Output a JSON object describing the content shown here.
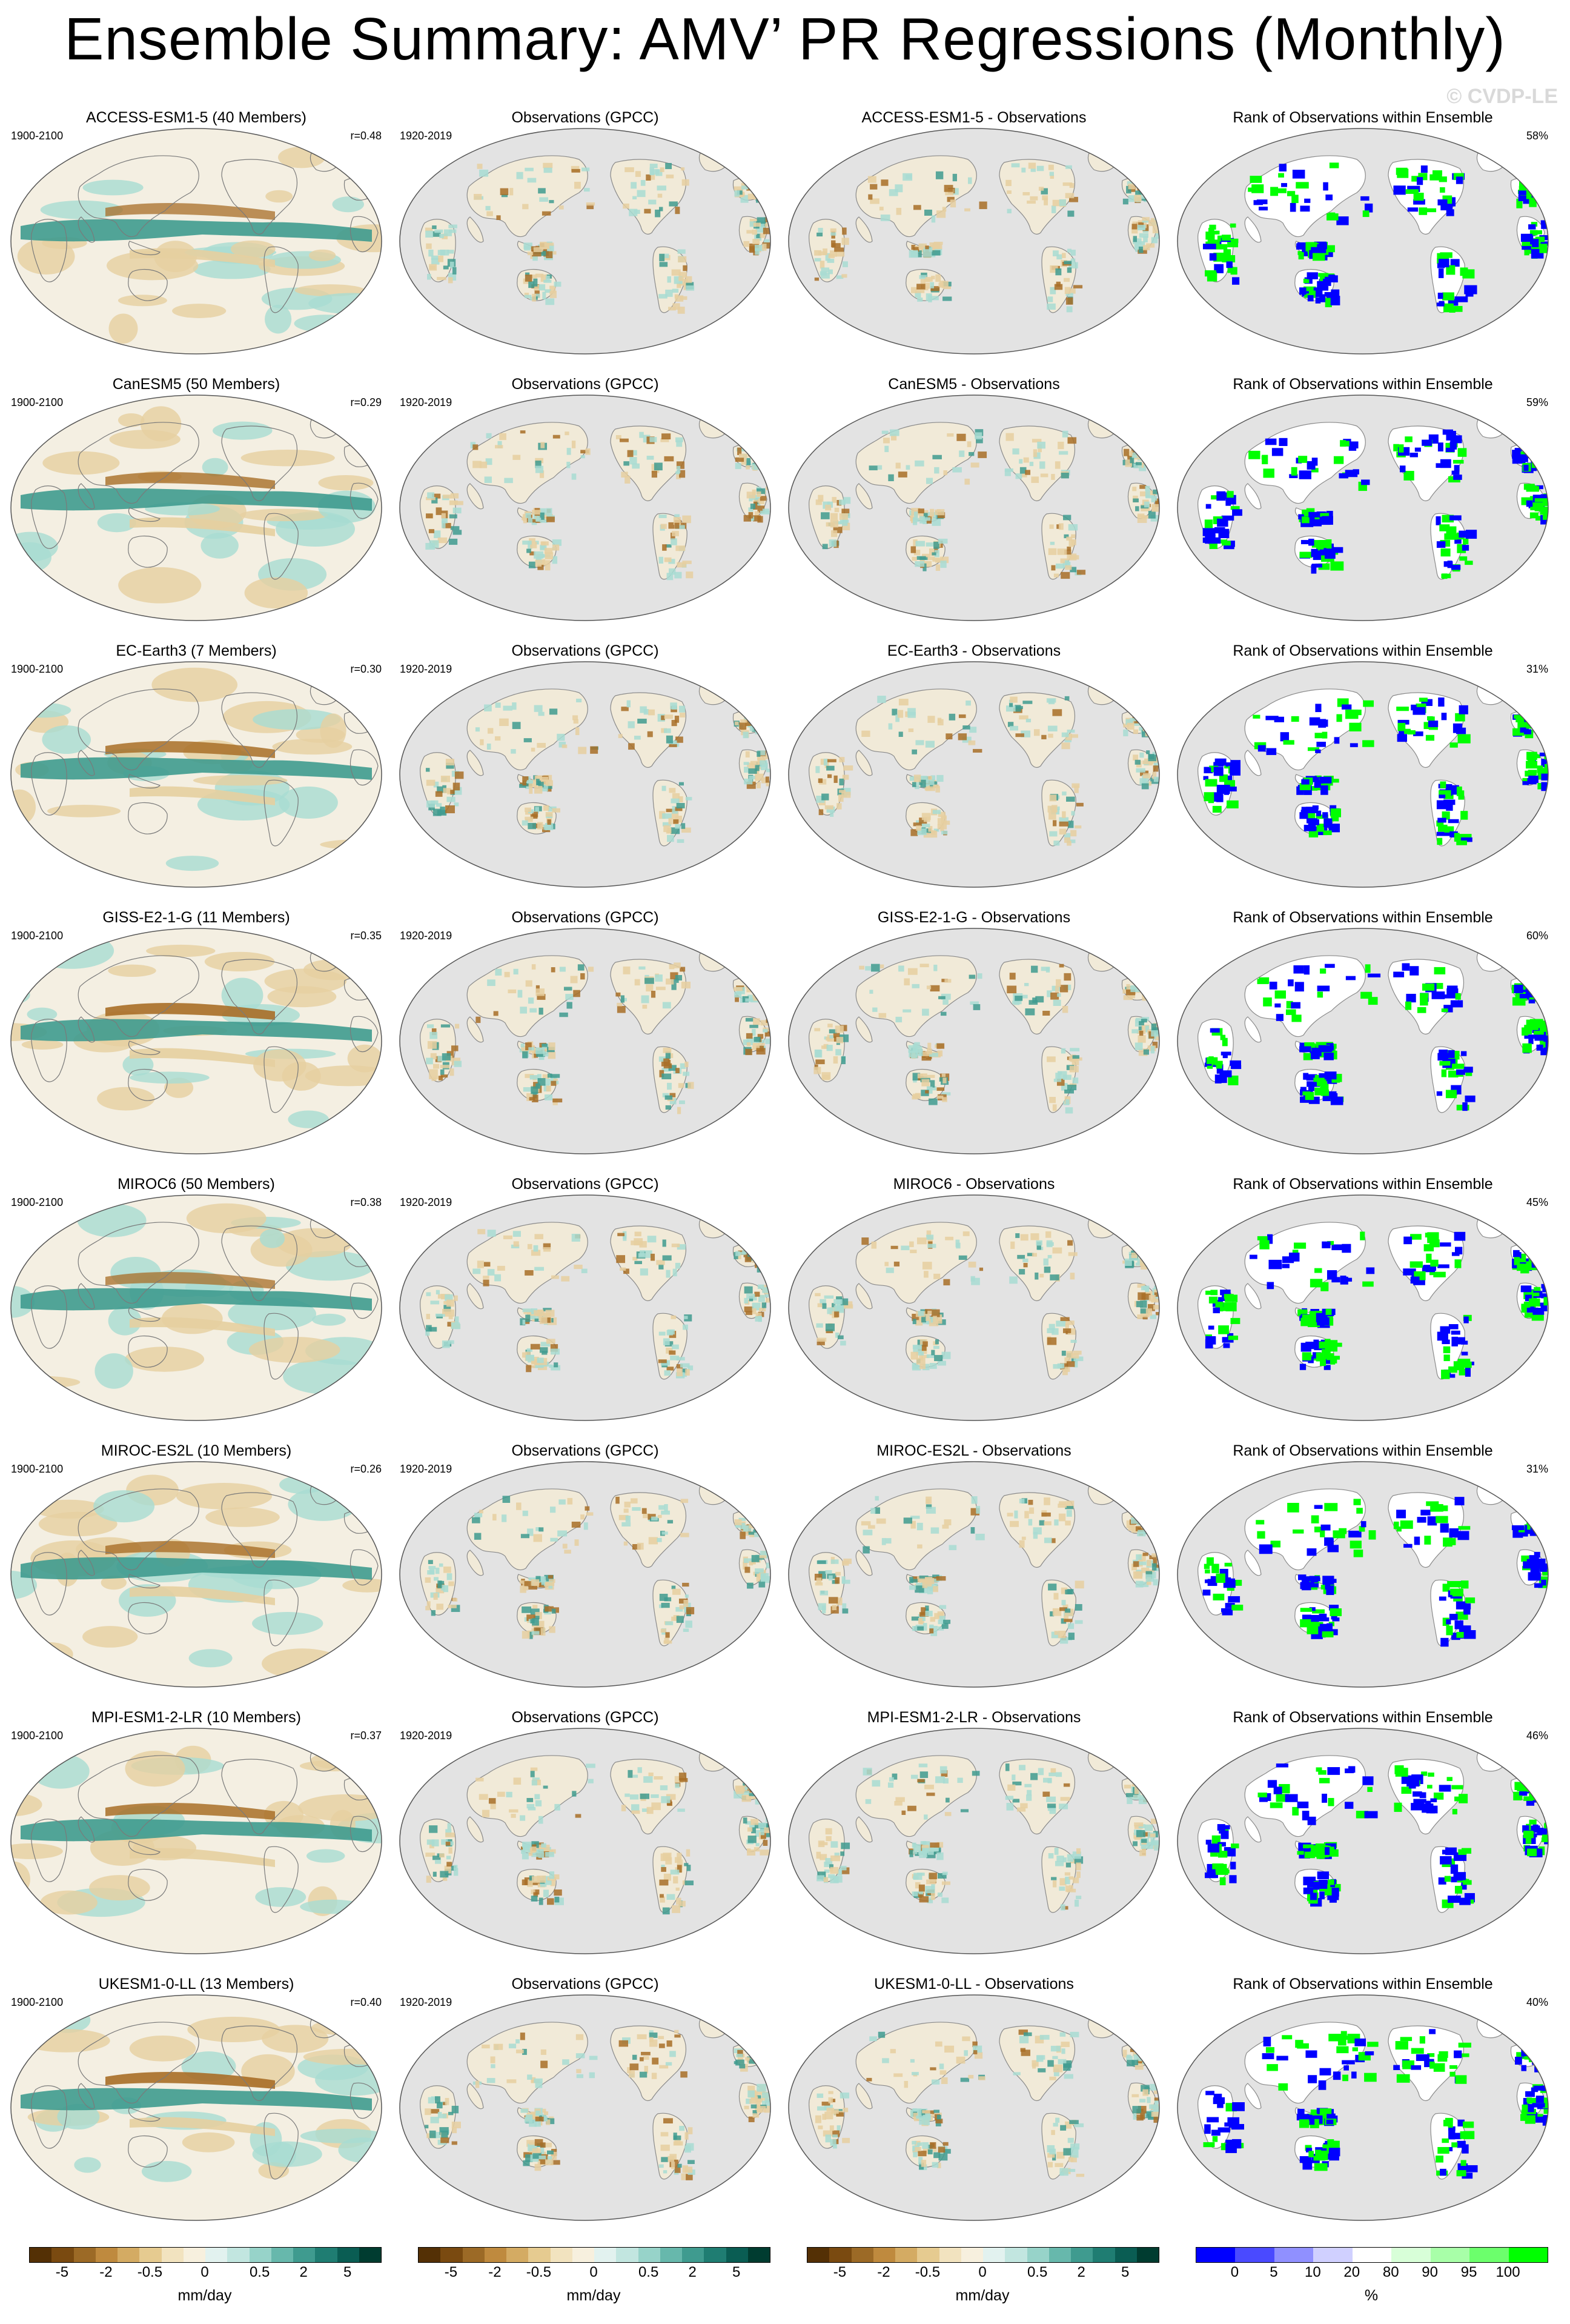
{
  "title": "Ensemble Summary: AMV’ PR Regressions (Monthly)",
  "watermark": "© CVDP-LE",
  "obs_period": "1920-2019",
  "model_period": "1900-2100",
  "obs_title": "Observations (GPCC)",
  "rank_title": "Rank of Observations within Ensemble",
  "rows": [
    {
      "model_title": "ACCESS-ESM1-5 (40 Members)",
      "r": "r=0.48",
      "diff_title": "ACCESS-ESM1-5 - Observations",
      "pct": "58%"
    },
    {
      "model_title": "CanESM5 (50 Members)",
      "r": "r=0.29",
      "diff_title": "CanESM5 - Observations",
      "pct": "59%"
    },
    {
      "model_title": "EC-Earth3 (7 Members)",
      "r": "r=0.30",
      "diff_title": "EC-Earth3 - Observations",
      "pct": "31%"
    },
    {
      "model_title": "GISS-E2-1-G (11 Members)",
      "r": "r=0.35",
      "diff_title": "GISS-E2-1-G - Observations",
      "pct": "60%"
    },
    {
      "model_title": "MIROC6 (50 Members)",
      "r": "r=0.38",
      "diff_title": "MIROC6 - Observations",
      "pct": "45%"
    },
    {
      "model_title": "MIROC-ES2L (10 Members)",
      "r": "r=0.26",
      "diff_title": "MIROC-ES2L - Observations",
      "pct": "31%"
    },
    {
      "model_title": "MPI-ESM1-2-LR (10 Members)",
      "r": "r=0.37",
      "diff_title": "MPI-ESM1-2-LR - Observations",
      "pct": "46%"
    },
    {
      "model_title": "UKESM1-0-LL (13 Members)",
      "r": "r=0.40",
      "diff_title": "UKESM1-0-LL - Observations",
      "pct": "40%"
    }
  ],
  "colorbar_pr": {
    "unit": "mm/day",
    "ticks": [
      "-5",
      "-2",
      "-0.5",
      "0",
      "0.5",
      "2",
      "5"
    ],
    "colors": [
      "#543005",
      "#7a4a10",
      "#9c6a26",
      "#bf8a3e",
      "#d4ab63",
      "#e6cb90",
      "#f2e3bf",
      "#f7f0de",
      "#e2f2ef",
      "#c2e6e0",
      "#97d3c9",
      "#67b8ac",
      "#3f9b8f",
      "#1f7d72",
      "#0a5d53",
      "#003c30"
    ]
  },
  "colorbar_rank": {
    "unit": "%",
    "ticks": [
      "0",
      "5",
      "10",
      "20",
      "80",
      "90",
      "95",
      "100"
    ],
    "colors": [
      "#0000ff",
      "#4a4aff",
      "#9090ff",
      "#d0d0ff",
      "#ffffff",
      "#d8ffd8",
      "#a8ffa8",
      "#6cff6c",
      "#00ff00"
    ]
  },
  "map_colors": {
    "land_grey": "#e3e3e3",
    "ocean_neutral": "#f4efe2",
    "wet": "#3f9b8f",
    "wet_light": "#a8dcd2",
    "dry": "#a86e27",
    "dry_light": "#e6cfa0",
    "rank_low": "#0000ff",
    "rank_high": "#00ff00"
  }
}
